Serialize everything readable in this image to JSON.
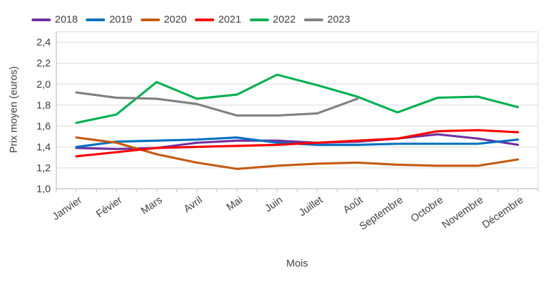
{
  "chart_data": {
    "type": "line",
    "title": "",
    "xlabel": "Mois",
    "ylabel": "Prix moyen (euros)",
    "legend_position": "top",
    "grid": true,
    "categories": [
      "Janvier",
      "Févier",
      "Mars",
      "Avril",
      "Mai",
      "Juin",
      "Juillet",
      "Août",
      "Septembre",
      "Octobre",
      "Novembre",
      "Décembre"
    ],
    "y_axis": {
      "min": 1.0,
      "max": 2.5,
      "tick_step": 0.2,
      "tick_values": [
        1.0,
        1.2,
        1.4,
        1.6,
        1.8,
        2.0,
        2.2,
        2.4
      ],
      "tick_labels": [
        "1,0",
        "1,2",
        "1,4",
        "1,6",
        "1,8",
        "2,0",
        "2,2",
        "2,4"
      ]
    },
    "series": [
      {
        "name": "2018",
        "color": "#7030A0",
        "values": [
          1.39,
          1.38,
          1.39,
          1.44,
          1.46,
          1.46,
          1.44,
          1.45,
          1.48,
          1.52,
          1.48,
          1.42
        ]
      },
      {
        "name": "2019",
        "color": "#0070C0",
        "values": [
          1.4,
          1.45,
          1.46,
          1.47,
          1.49,
          1.44,
          1.42,
          1.42,
          1.43,
          1.43,
          1.43,
          1.47
        ]
      },
      {
        "name": "2020",
        "color": "#C55A11",
        "values": [
          1.49,
          1.44,
          1.33,
          1.25,
          1.19,
          1.22,
          1.24,
          1.25,
          1.23,
          1.22,
          1.22,
          1.28
        ]
      },
      {
        "name": "2021",
        "color": "#FF0000",
        "values": [
          1.31,
          1.35,
          1.39,
          1.4,
          1.41,
          1.42,
          1.44,
          1.46,
          1.48,
          1.55,
          1.56,
          1.54
        ]
      },
      {
        "name": "2022",
        "color": "#00B050",
        "values": [
          1.63,
          1.71,
          2.02,
          1.86,
          1.9,
          2.09,
          1.99,
          1.88,
          1.73,
          1.87,
          1.88,
          1.78
        ]
      },
      {
        "name": "2023",
        "color": "#808080",
        "values": [
          1.92,
          1.87,
          1.86,
          1.81,
          1.7,
          1.7,
          1.72,
          1.86,
          null,
          null,
          null,
          null
        ]
      }
    ],
    "colors": {
      "gridline": "#D9D9D9",
      "axis_line": "#BFBFBF",
      "text": "#404040"
    }
  }
}
